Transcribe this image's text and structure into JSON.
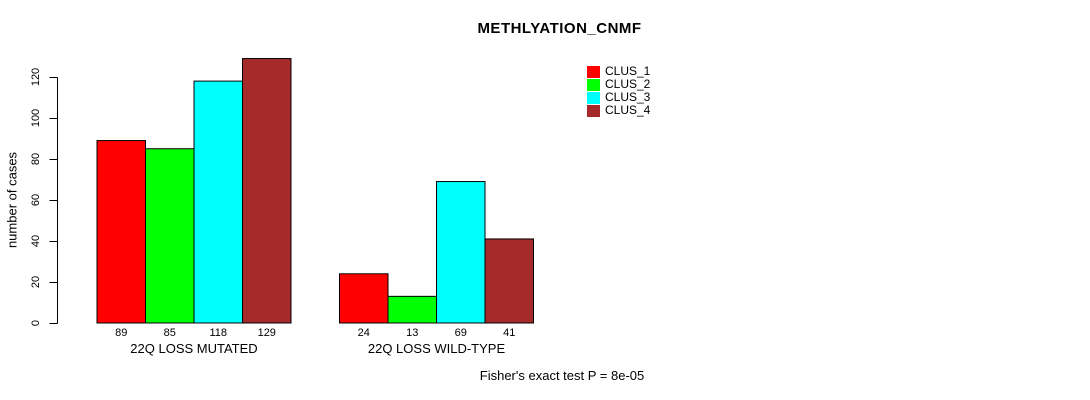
{
  "chart_data": {
    "type": "bar",
    "title": "METHLYATION_CNMF",
    "ylabel": "number of cases",
    "xlabel": "",
    "ylim": [
      0,
      130
    ],
    "yticks": [
      0,
      20,
      40,
      60,
      80,
      100,
      120
    ],
    "grid": false,
    "categories": [
      "22Q LOSS MUTATED",
      "22Q LOSS WILD-TYPE"
    ],
    "series": [
      {
        "name": "CLUS_1",
        "color": "#FF0000",
        "values": [
          89,
          24
        ]
      },
      {
        "name": "CLUS_2",
        "color": "#00FF00",
        "values": [
          85,
          13
        ]
      },
      {
        "name": "CLUS_3",
        "color": "#00FFFF",
        "values": [
          118,
          69
        ]
      },
      {
        "name": "CLUS_4",
        "color": "#A52A2A",
        "values": [
          129,
          41
        ]
      }
    ],
    "bar_value_labels": [
      [
        "89",
        "85",
        "118",
        "129"
      ],
      [
        "24",
        "13",
        "69",
        "41"
      ]
    ],
    "legend_position": "top-right",
    "annotation": "Fisher's exact test P = 8e-05"
  }
}
